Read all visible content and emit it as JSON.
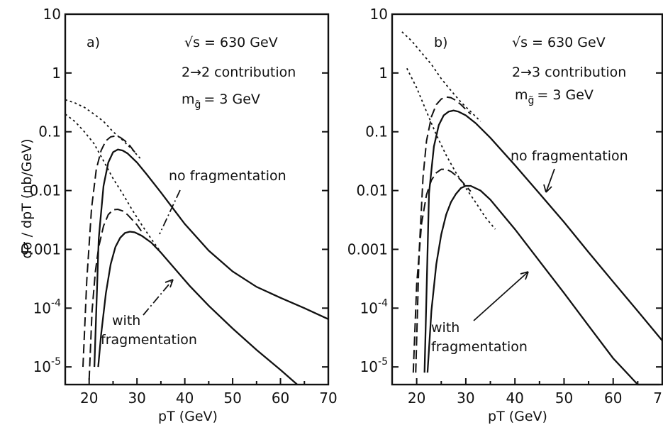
{
  "chart_data": [
    {
      "type": "line",
      "panel_label": "a)",
      "annotations": [
        "√s = 630 GeV",
        "2→2 contribution",
        "m_g̃ = 3 GeV"
      ],
      "annotation_lines": {
        "energy": "√s = 630 GeV",
        "process": "2→2 contribution",
        "mass": "m",
        "mass_sub": "g̃",
        "mass_val": "= 3 GeV"
      },
      "ylabel": "dσ / dpT (nb/GeV)",
      "xlabel": "pT (GeV)",
      "xlim": [
        15,
        70
      ],
      "ylim_log10": [
        -5.3,
        1
      ],
      "log_y": true,
      "grid": false,
      "x_ticks": [
        "20",
        "30",
        "40",
        "50",
        "60",
        "70"
      ],
      "y_ticks": [
        {
          "mant": "10",
          "exp": ""
        },
        {
          "mant": "1",
          "exp": ""
        },
        {
          "mant": "0.1",
          "exp": ""
        },
        {
          "mant": "0.01",
          "exp": ""
        },
        {
          "mant": "0.001",
          "exp": ""
        },
        {
          "mant": "10",
          "exp": "-4"
        },
        {
          "mant": "10",
          "exp": "-5"
        }
      ],
      "y_tick_values": [
        10,
        1,
        0.1,
        0.01,
        0.001,
        0.0001,
        1e-05
      ],
      "labels": {
        "no_fragmentation": "no fragmentation",
        "with_fragmentation": "with fragmentation",
        "with": "with",
        "fragmentation": "fragmentation"
      },
      "series": [
        {
          "group": "no fragmentation",
          "style": "solid",
          "x": [
            21.1,
            22,
            23,
            24,
            25,
            26,
            27,
            28,
            30,
            32,
            35,
            40,
            45,
            50,
            55,
            60,
            65,
            70
          ],
          "y": [
            1e-05,
            0.0015,
            0.012,
            0.03,
            0.045,
            0.05,
            0.048,
            0.043,
            0.03,
            0.019,
            0.0093,
            0.0027,
            0.00095,
            0.00042,
            0.00023,
            0.00015,
            0.0001,
            6.5e-05
          ]
        },
        {
          "group": "no fragmentation",
          "style": "dashed",
          "x": [
            18.7,
            19.5,
            20.5,
            21.5,
            22.5,
            23.5,
            24.5,
            25.5,
            26.5,
            27.5,
            28.5,
            30
          ],
          "y": [
            1e-05,
            0.0003,
            0.005,
            0.023,
            0.048,
            0.07,
            0.082,
            0.085,
            0.08,
            0.07,
            0.058,
            0.04
          ]
        },
        {
          "group": "no fragmentation",
          "style": "dotted",
          "x": [
            15,
            17,
            19,
            21,
            23,
            25,
            27,
            29,
            31
          ],
          "y": [
            0.35,
            0.31,
            0.26,
            0.2,
            0.15,
            0.1,
            0.072,
            0.05,
            0.033
          ]
        },
        {
          "group": "with fragmentation",
          "style": "solid",
          "x": [
            21.9,
            22.5,
            23.5,
            24.5,
            25.5,
            26.5,
            27.5,
            28.5,
            29.5,
            31,
            33,
            35,
            38,
            41,
            45,
            50,
            55,
            60,
            63.5
          ],
          "y": [
            1e-05,
            3.56e-05,
            0.000178,
            0.00056,
            0.0011,
            0.00158,
            0.0019,
            0.002,
            0.00195,
            0.0017,
            0.0013,
            0.00088,
            0.00046,
            0.00024,
            0.00011,
            4.5e-05,
            1.95e-05,
            8.9e-06,
            5e-06
          ]
        },
        {
          "group": "with fragmentation",
          "style": "dashed",
          "x": [
            20,
            20.6,
            21.3,
            22,
            23,
            24,
            25,
            26,
            27,
            28,
            29,
            30,
            31
          ],
          "y": [
            6e-06,
            8.9e-05,
            0.00042,
            0.0011,
            0.0025,
            0.0039,
            0.0047,
            0.0048,
            0.0045,
            0.0039,
            0.0032,
            0.0026,
            0.002
          ]
        },
        {
          "group": "with fragmentation",
          "style": "dotted",
          "x": [
            15,
            17,
            19,
            21,
            23,
            25,
            27,
            29,
            31,
            33,
            35
          ],
          "y": [
            0.2,
            0.15,
            0.1,
            0.063,
            0.032,
            0.016,
            0.0089,
            0.0047,
            0.0026,
            0.0015,
            0.00089
          ]
        }
      ]
    },
    {
      "type": "line",
      "panel_label": "b)",
      "annotations": [
        "√s = 630 GeV",
        "2→3 contribution",
        "m_g̃ = 3 GeV"
      ],
      "annotation_lines": {
        "energy": "√s = 630 GeV",
        "process": "2→3 contribution",
        "mass": "m",
        "mass_sub": "g̃",
        "mass_val": "= 3 GeV"
      },
      "xlabel": "pT (GeV)",
      "xlim": [
        15,
        70
      ],
      "ylim_log10": [
        -5.3,
        1
      ],
      "log_y": true,
      "grid": false,
      "x_ticks": [
        "20",
        "30",
        "40",
        "50",
        "60",
        "70"
      ],
      "y_ticks": [
        {
          "mant": "10",
          "exp": ""
        },
        {
          "mant": "1",
          "exp": ""
        },
        {
          "mant": "0.1",
          "exp": ""
        },
        {
          "mant": "0.01",
          "exp": ""
        },
        {
          "mant": "0.001",
          "exp": ""
        },
        {
          "mant": "10",
          "exp": "-4"
        },
        {
          "mant": "10",
          "exp": "-5"
        }
      ],
      "y_tick_values": [
        10,
        1,
        0.1,
        0.01,
        0.001,
        0.0001,
        1e-05
      ],
      "labels": {
        "no_fragmentation": "no fragmentation",
        "with": "with",
        "fragmentation": "fragmentation"
      },
      "series": [
        {
          "group": "no fragmentation",
          "style": "solid",
          "x": [
            21.6,
            22.5,
            23.5,
            24.5,
            25.5,
            26.5,
            27.5,
            28.5,
            30,
            32,
            35,
            40,
            45,
            50,
            55,
            60,
            65,
            70
          ],
          "y": [
            8e-06,
            0.0089,
            0.056,
            0.13,
            0.19,
            0.22,
            0.23,
            0.22,
            0.19,
            0.14,
            0.079,
            0.027,
            0.0089,
            0.0029,
            0.00089,
            0.00028,
            8.9e-05,
            2.8e-05
          ]
        },
        {
          "group": "no fragmentation",
          "style": "dashed",
          "x": [
            19.8,
            20.5,
            21.3,
            22,
            23,
            24,
            25,
            26,
            27,
            28,
            29,
            30,
            31
          ],
          "y": [
            8e-06,
            0.00089,
            0.017,
            0.07,
            0.18,
            0.29,
            0.36,
            0.39,
            0.38,
            0.34,
            0.29,
            0.24,
            0.2
          ]
        },
        {
          "group": "no fragmentation",
          "style": "dotted",
          "x": [
            17,
            19,
            21,
            23,
            25,
            27,
            29,
            31,
            33
          ],
          "y": [
            5,
            3.5,
            2.2,
            1.4,
            0.8,
            0.5,
            0.32,
            0.22,
            0.15
          ]
        },
        {
          "group": "with fragmentation",
          "style": "solid",
          "x": [
            22.2,
            23,
            24,
            25,
            26,
            27,
            28,
            29,
            30,
            31,
            33,
            35,
            40,
            45,
            50,
            55,
            60,
            65,
            69.5
          ],
          "y": [
            8e-06,
            9e-05,
            0.00056,
            0.0018,
            0.0039,
            0.0064,
            0.0088,
            0.011,
            0.012,
            0.012,
            0.01,
            0.007,
            0.0022,
            0.00063,
            0.00018,
            5e-05,
            1.4e-05,
            3.9e-06,
            1.1e-06
          ]
        },
        {
          "group": "with fragmentation",
          "style": "dashed",
          "x": [
            19.3,
            20,
            21,
            22,
            23,
            24,
            25,
            26,
            27,
            28,
            29,
            30,
            31
          ],
          "y": [
            8e-06,
            0.00025,
            0.0028,
            0.0085,
            0.015,
            0.02,
            0.023,
            0.023,
            0.021,
            0.018,
            0.015,
            0.012,
            0.0097
          ]
        },
        {
          "group": "with fragmentation",
          "style": "dotted",
          "x": [
            18,
            20,
            22,
            24,
            26,
            28,
            30,
            32,
            34,
            36
          ],
          "y": [
            1.2,
            0.56,
            0.22,
            0.089,
            0.04,
            0.02,
            0.011,
            0.0063,
            0.0035,
            0.0022
          ]
        }
      ]
    }
  ]
}
